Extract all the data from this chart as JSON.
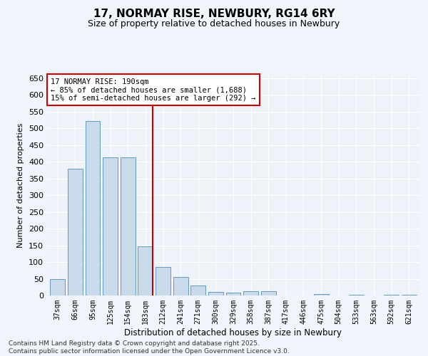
{
  "title": "17, NORMAY RISE, NEWBURY, RG14 6RY",
  "subtitle": "Size of property relative to detached houses in Newbury",
  "xlabel": "Distribution of detached houses by size in Newbury",
  "ylabel": "Number of detached properties",
  "categories": [
    "37sqm",
    "66sqm",
    "95sqm",
    "125sqm",
    "154sqm",
    "183sqm",
    "212sqm",
    "241sqm",
    "271sqm",
    "300sqm",
    "329sqm",
    "358sqm",
    "387sqm",
    "417sqm",
    "446sqm",
    "475sqm",
    "504sqm",
    "533sqm",
    "563sqm",
    "592sqm",
    "621sqm"
  ],
  "values": [
    50,
    378,
    521,
    413,
    413,
    147,
    85,
    55,
    30,
    10,
    8,
    12,
    12,
    1,
    1,
    4,
    0,
    3,
    0,
    3,
    2
  ],
  "bar_color": "#c9daea",
  "bar_edge_color": "#6699bb",
  "highlight_bar_index": 5,
  "vline_color": "#cc0000",
  "annotation_text": "17 NORMAY RISE: 190sqm\n← 85% of detached houses are smaller (1,688)\n15% of semi-detached houses are larger (292) →",
  "annotation_box_color": "#ffffff",
  "annotation_box_edge_color": "#cc0000",
  "ylim": [
    0,
    660
  ],
  "yticks": [
    0,
    50,
    100,
    150,
    200,
    250,
    300,
    350,
    400,
    450,
    500,
    550,
    600,
    650
  ],
  "footer_line1": "Contains HM Land Registry data © Crown copyright and database right 2025.",
  "footer_line2": "Contains public sector information licensed under the Open Government Licence v3.0.",
  "bg_color": "#f0f4fb",
  "plot_bg_color": "#eef2f9",
  "grid_color": "#ffffff",
  "title_fontsize": 11,
  "subtitle_fontsize": 9
}
